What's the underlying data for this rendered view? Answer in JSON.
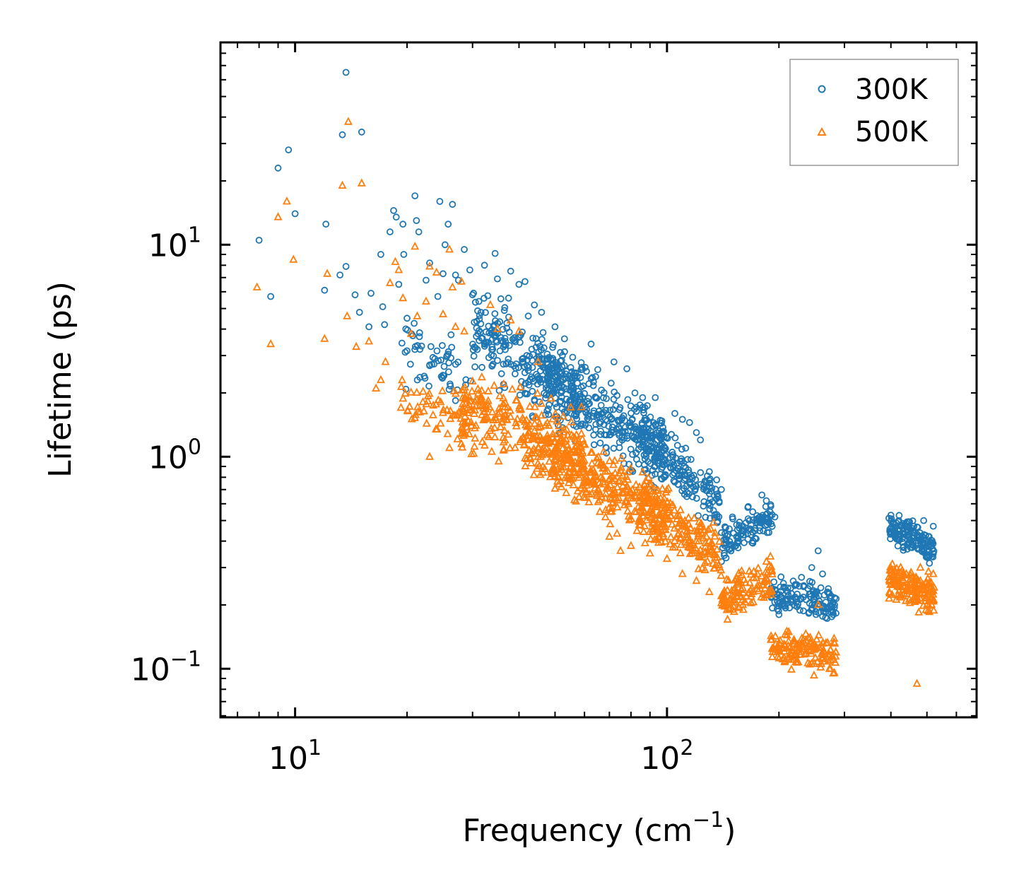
{
  "chart_data": {
    "type": "scatter",
    "xscale": "log",
    "yscale": "log",
    "xlabel": "Frequency (cm",
    "xlabel_sup": "−1",
    "xlabel_end": ")",
    "ylabel": "Lifetime (ps)",
    "xlim": [
      6.3,
      680
    ],
    "ylim": [
      0.059,
      90
    ],
    "x_ticks": [
      {
        "value": 10,
        "base": "10",
        "exp": "1"
      },
      {
        "value": 100,
        "base": "10",
        "exp": "2"
      }
    ],
    "y_ticks": [
      {
        "value": 0.1,
        "base": "10",
        "exp": "−1"
      },
      {
        "value": 1,
        "base": "10",
        "exp": "0"
      },
      {
        "value": 10,
        "base": "10",
        "exp": "1"
      }
    ],
    "legend": {
      "position": "top-right",
      "entries": [
        "300K",
        "500K"
      ]
    },
    "series": [
      {
        "name": "300K",
        "marker": "circle",
        "color": "#1f77b4",
        "points": [
          [
            8.0,
            10.5
          ],
          [
            8.6,
            5.7
          ],
          [
            9.0,
            23.0
          ],
          [
            9.6,
            28.0
          ],
          [
            10.0,
            14.0
          ],
          [
            12.0,
            6.1
          ],
          [
            12.1,
            12.5
          ],
          [
            13.2,
            7.2
          ],
          [
            13.4,
            33.0
          ],
          [
            13.7,
            65.0
          ],
          [
            13.7,
            7.9
          ],
          [
            14.5,
            5.8
          ],
          [
            14.9,
            4.8
          ],
          [
            15.1,
            34.0
          ],
          [
            15.8,
            4.1
          ],
          [
            16.0,
            5.9
          ],
          [
            17.0,
            9.0
          ],
          [
            17.2,
            5.1
          ],
          [
            17.4,
            4.2
          ],
          [
            18.0,
            11.5
          ],
          [
            18.4,
            14.5
          ],
          [
            18.7,
            13.5
          ],
          [
            19.0,
            6.5
          ],
          [
            19.5,
            12.5
          ],
          [
            19.6,
            9.0
          ],
          [
            20.0,
            4.5
          ],
          [
            21.0,
            17.0
          ],
          [
            21.2,
            13.0
          ],
          [
            21.5,
            11.5
          ],
          [
            22.5,
            6.8
          ],
          [
            23.0,
            8.2
          ],
          [
            24.2,
            5.7
          ],
          [
            24.5,
            16.0
          ],
          [
            25.0,
            7.3
          ],
          [
            25.3,
            10.0
          ],
          [
            25.8,
            12.5
          ],
          [
            26.5,
            15.5
          ],
          [
            27.0,
            7.2
          ],
          [
            27.5,
            6.8
          ],
          [
            28.5,
            9.5
          ],
          [
            29.5,
            7.6
          ],
          [
            30.0,
            5.8
          ],
          [
            31.2,
            5.4
          ],
          [
            32.3,
            8.0
          ],
          [
            34.5,
            9.1
          ],
          [
            35.0,
            6.9
          ],
          [
            37.5,
            5.6
          ],
          [
            38.0,
            7.5
          ],
          [
            40.0,
            6.5
          ],
          [
            41.5,
            6.7
          ],
          [
            44.0,
            5.2
          ],
          [
            46.0,
            4.8
          ],
          [
            50.0,
            4.1
          ],
          [
            53.0,
            3.6
          ],
          [
            62.5,
            3.4
          ],
          [
            72.0,
            2.8
          ],
          [
            78.0,
            2.6
          ],
          [
            82.0,
            2.0
          ],
          [
            86.0,
            1.9
          ],
          [
            93.0,
            1.9
          ],
          [
            105.0,
            1.6
          ],
          [
            110.0,
            1.5
          ],
          [
            115.0,
            1.45
          ],
          [
            120.0,
            1.3
          ],
          [
            123.0,
            1.2
          ],
          [
            130.0,
            0.85
          ],
          [
            140.0,
            0.7
          ],
          [
            150.0,
            0.52
          ],
          [
            160.0,
            0.47
          ],
          [
            170.0,
            0.55
          ],
          [
            180.0,
            0.66
          ],
          [
            185.0,
            0.62
          ],
          [
            195.0,
            0.52
          ],
          [
            200.0,
            0.18
          ],
          [
            215.0,
            0.24
          ],
          [
            230.0,
            0.27
          ],
          [
            245.0,
            0.3
          ],
          [
            255.0,
            0.36
          ],
          [
            262.0,
            0.28
          ],
          [
            270.0,
            0.23
          ],
          [
            280.0,
            0.18
          ],
          [
            400.0,
            0.53
          ],
          [
            420.0,
            0.5
          ],
          [
            440.0,
            0.47
          ],
          [
            460.0,
            0.44
          ],
          [
            475.0,
            0.37
          ],
          [
            490.0,
            0.5
          ],
          [
            505.0,
            0.42
          ],
          [
            520.0,
            0.47
          ]
        ],
        "bands": [
          {
            "x0": 19,
            "x1": 30,
            "y0": 3.2,
            "y1": 2.3,
            "spread": 1.7,
            "n": 60
          },
          {
            "x0": 30,
            "x1": 60,
            "y0": 4.2,
            "y1": 1.8,
            "spread": 1.9,
            "n": 260
          },
          {
            "x0": 45,
            "x1": 100,
            "y0": 2.6,
            "y1": 0.95,
            "spread": 1.7,
            "n": 320
          },
          {
            "x0": 85,
            "x1": 140,
            "y0": 1.35,
            "y1": 0.55,
            "spread": 1.55,
            "n": 180
          },
          {
            "x0": 140,
            "x1": 192,
            "y0": 0.38,
            "y1": 0.52,
            "spread": 1.35,
            "n": 110
          },
          {
            "x0": 190,
            "x1": 285,
            "y0": 0.23,
            "y1": 0.2,
            "spread": 1.3,
            "n": 140
          },
          {
            "x0": 395,
            "x1": 525,
            "y0": 0.46,
            "y1": 0.37,
            "spread": 1.3,
            "n": 150
          }
        ]
      },
      {
        "name": "500K",
        "marker": "triangle",
        "color": "#ff7f0e",
        "points": [
          [
            7.9,
            6.3
          ],
          [
            8.6,
            3.4
          ],
          [
            9.0,
            13.5
          ],
          [
            9.5,
            16.0
          ],
          [
            9.9,
            8.5
          ],
          [
            12.0,
            3.6
          ],
          [
            12.2,
            7.3
          ],
          [
            13.4,
            19.0
          ],
          [
            13.8,
            4.6
          ],
          [
            13.9,
            38.0
          ],
          [
            14.6,
            3.3
          ],
          [
            15.1,
            19.5
          ],
          [
            15.8,
            3.5
          ],
          [
            16.5,
            2.1
          ],
          [
            17.0,
            2.3
          ],
          [
            17.5,
            2.8
          ],
          [
            18.0,
            6.6
          ],
          [
            18.6,
            8.3
          ],
          [
            19.0,
            7.6
          ],
          [
            19.5,
            5.6
          ],
          [
            20.5,
            3.8
          ],
          [
            21.0,
            9.8
          ],
          [
            21.3,
            4.6
          ],
          [
            22.5,
            5.4
          ],
          [
            23.0,
            7.9
          ],
          [
            24.0,
            7.4
          ],
          [
            25.0,
            4.7
          ],
          [
            26.0,
            9.5
          ],
          [
            26.5,
            6.3
          ],
          [
            27.0,
            4.1
          ],
          [
            28.0,
            6.7
          ],
          [
            28.5,
            3.9
          ],
          [
            23.0,
            1.0
          ],
          [
            26.0,
            1.1
          ],
          [
            28.0,
            1.15
          ],
          [
            33.5,
            5.2
          ],
          [
            35.0,
            4.0
          ],
          [
            38.0,
            4.4
          ],
          [
            40.0,
            3.9
          ],
          [
            45.0,
            2.8
          ],
          [
            52.0,
            0.72
          ],
          [
            55.0,
            0.78
          ],
          [
            60.0,
            0.7
          ],
          [
            66.0,
            0.55
          ],
          [
            70.0,
            0.42
          ],
          [
            75.0,
            0.36
          ],
          [
            80.0,
            0.38
          ],
          [
            90.0,
            0.35
          ],
          [
            100.0,
            0.33
          ],
          [
            110.0,
            0.28
          ],
          [
            120.0,
            0.26
          ],
          [
            130.0,
            0.23
          ],
          [
            140.0,
            0.22
          ],
          [
            150.0,
            0.19
          ],
          [
            160.0,
            0.2
          ],
          [
            175.0,
            0.28
          ],
          [
            185.0,
            0.32
          ],
          [
            195.0,
            0.12
          ],
          [
            210.0,
            0.15
          ],
          [
            225.0,
            0.13
          ],
          [
            240.0,
            0.14
          ],
          [
            255.0,
            0.2
          ],
          [
            265.0,
            0.12
          ],
          [
            275.0,
            0.1
          ],
          [
            280.0,
            0.095
          ],
          [
            400.0,
            0.29
          ],
          [
            420.0,
            0.26
          ],
          [
            440.0,
            0.28
          ],
          [
            460.0,
            0.21
          ],
          [
            470.0,
            0.085
          ],
          [
            480.0,
            0.3
          ],
          [
            500.0,
            0.24
          ],
          [
            520.0,
            0.28
          ]
        ],
        "bands": [
          {
            "x0": 19,
            "x1": 30,
            "y0": 1.9,
            "y1": 1.55,
            "spread": 1.6,
            "n": 60
          },
          {
            "x0": 28,
            "x1": 60,
            "y0": 1.65,
            "y1": 1.05,
            "spread": 1.8,
            "n": 260
          },
          {
            "x0": 45,
            "x1": 100,
            "y0": 1.15,
            "y1": 0.5,
            "spread": 1.7,
            "n": 320
          },
          {
            "x0": 85,
            "x1": 140,
            "y0": 0.62,
            "y1": 0.33,
            "spread": 1.5,
            "n": 180
          },
          {
            "x0": 140,
            "x1": 192,
            "y0": 0.21,
            "y1": 0.27,
            "spread": 1.35,
            "n": 110
          },
          {
            "x0": 190,
            "x1": 285,
            "y0": 0.125,
            "y1": 0.118,
            "spread": 1.35,
            "n": 140
          },
          {
            "x0": 395,
            "x1": 525,
            "y0": 0.26,
            "y1": 0.22,
            "spread": 1.35,
            "n": 150
          }
        ]
      }
    ]
  }
}
